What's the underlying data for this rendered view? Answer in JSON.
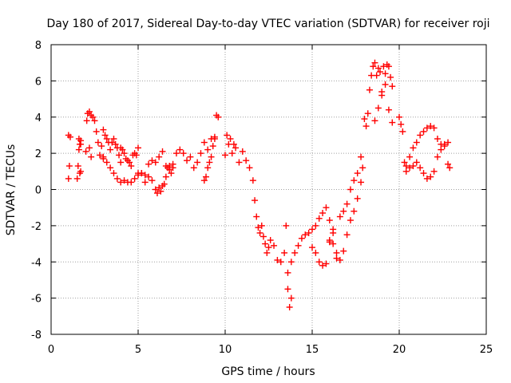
{
  "chart_data": {
    "type": "scatter",
    "title": "Day 180 of 2017, Sidereal Day-to-day VTEC variation (SDTVAR) for receiver roji",
    "xlabel": "GPS time / hours",
    "ylabel": "SDTVAR / TECUs",
    "xlim": [
      0,
      25
    ],
    "ylim": [
      -8,
      8
    ],
    "xticks": [
      0,
      5,
      10,
      15,
      20,
      25
    ],
    "yticks": [
      -8,
      -6,
      -4,
      -2,
      0,
      2,
      4,
      6,
      8
    ],
    "grid": true,
    "marker": "+",
    "color": "#ff0000",
    "series": [
      {
        "name": "SDTVAR",
        "x": [
          1.0,
          1.0,
          1.05,
          1.1,
          1.5,
          1.55,
          1.6,
          1.6,
          1.65,
          1.65,
          1.7,
          1.7,
          1.7,
          2.0,
          2.05,
          2.1,
          2.2,
          2.2,
          2.3,
          2.3,
          2.4,
          2.5,
          2.6,
          2.7,
          2.8,
          2.9,
          3.0,
          3.0,
          3.1,
          3.2,
          3.3,
          3.4,
          3.5,
          3.6,
          3.7,
          3.8,
          3.9,
          4.0,
          4.0,
          4.1,
          4.2,
          4.3,
          4.4,
          4.5,
          4.6,
          4.7,
          4.8,
          4.9,
          5.0,
          3.0,
          3.2,
          3.4,
          3.6,
          3.8,
          4.0,
          4.2,
          4.4,
          4.6,
          4.8,
          5.0,
          5.2,
          5.4,
          5.6,
          5.8,
          6.0,
          6.2,
          6.4,
          6.6,
          6.8,
          7.0,
          5.0,
          5.2,
          5.4,
          5.6,
          5.8,
          6.0,
          6.1,
          6.2,
          6.3,
          6.4,
          6.5,
          6.6,
          6.7,
          6.8,
          6.9,
          7.0,
          7.2,
          7.4,
          7.6,
          7.8,
          8.0,
          8.2,
          8.4,
          8.6,
          8.8,
          9.0,
          9.2,
          9.4,
          8.8,
          8.9,
          9.0,
          9.1,
          9.2,
          9.3,
          9.4,
          9.5,
          9.6,
          10.0,
          10.1,
          10.2,
          10.3,
          10.4,
          10.5,
          10.6,
          10.8,
          11.0,
          11.2,
          11.4,
          11.6,
          11.7,
          11.8,
          11.9,
          12.0,
          12.1,
          12.2,
          12.3,
          12.4,
          12.5,
          12.6,
          12.8,
          13.0,
          13.2,
          13.4,
          13.5,
          13.6,
          13.7,
          13.8,
          13.6,
          13.8,
          14.0,
          14.2,
          14.4,
          14.6,
          14.8,
          15.0,
          15.2,
          15.4,
          15.6,
          15.8,
          16.0,
          16.2,
          15.0,
          15.2,
          15.4,
          15.6,
          15.8,
          16.0,
          16.2,
          16.4,
          16.6,
          16.8,
          17.0,
          17.2,
          17.4,
          17.6,
          17.8,
          16.0,
          16.2,
          16.4,
          16.6,
          16.8,
          17.0,
          17.2,
          17.4,
          17.6,
          17.8,
          17.9,
          18.0,
          18.1,
          18.2,
          18.3,
          18.4,
          18.5,
          18.6,
          18.7,
          18.8,
          18.9,
          19.0,
          19.1,
          19.2,
          19.3,
          19.4,
          19.5,
          19.6,
          18.6,
          18.8,
          19.0,
          19.2,
          19.4,
          19.6,
          20.0,
          20.1,
          20.2,
          20.3,
          20.4,
          20.6,
          20.8,
          21.0,
          21.2,
          21.4,
          21.6,
          21.8,
          22.0,
          22.2,
          22.4,
          22.6,
          22.8,
          22.9,
          20.4,
          20.6,
          20.8,
          21.0,
          21.2,
          21.4,
          21.6,
          21.8,
          22.0,
          22.2,
          22.4,
          22.6,
          22.8
        ],
        "y": [
          3.0,
          0.6,
          1.3,
          2.9,
          0.6,
          1.3,
          2.8,
          2.2,
          0.9,
          2.5,
          1.0,
          2.7,
          2.5,
          2.1,
          3.8,
          4.2,
          4.3,
          2.3,
          4.1,
          1.8,
          4.0,
          3.8,
          3.2,
          2.6,
          1.9,
          2.4,
          3.3,
          1.7,
          3.0,
          2.8,
          2.6,
          2.2,
          2.6,
          2.8,
          2.5,
          2.3,
          1.9,
          1.5,
          2.3,
          2.2,
          2.0,
          1.7,
          1.6,
          1.5,
          1.3,
          1.9,
          2.0,
          1.9,
          2.3,
          1.8,
          1.5,
          1.2,
          0.9,
          0.6,
          0.4,
          0.5,
          0.4,
          0.4,
          0.6,
          0.9,
          0.9,
          0.8,
          1.4,
          1.6,
          1.5,
          1.8,
          2.1,
          1.3,
          1.3,
          1.2,
          0.8,
          0.9,
          0.4,
          0.7,
          0.5,
          0.0,
          -0.2,
          0.1,
          -0.1,
          0.2,
          0.3,
          0.7,
          1.2,
          1.1,
          0.9,
          1.4,
          2.0,
          2.2,
          2.0,
          1.6,
          1.8,
          1.2,
          1.5,
          2.0,
          2.6,
          2.2,
          2.8,
          2.9,
          0.5,
          0.7,
          1.2,
          1.5,
          1.8,
          2.4,
          2.8,
          4.1,
          4.0,
          1.9,
          3.0,
          2.5,
          2.8,
          2.0,
          2.5,
          2.3,
          1.5,
          2.1,
          1.6,
          1.2,
          0.5,
          -0.6,
          -1.5,
          -2.1,
          -2.4,
          -2.0,
          -2.6,
          -3.0,
          -3.5,
          -3.2,
          -2.8,
          -3.1,
          -3.9,
          -4.0,
          -3.5,
          -2.0,
          -5.5,
          -6.5,
          -6.0,
          -4.6,
          -4.0,
          -3.5,
          -3.1,
          -2.7,
          -2.5,
          -2.4,
          -2.2,
          -2.0,
          -1.6,
          -1.3,
          -1.0,
          -1.7,
          -2.2,
          -3.2,
          -3.5,
          -4.0,
          -4.2,
          -4.1,
          -2.9,
          -2.4,
          -3.5,
          -1.5,
          -1.2,
          -0.8,
          0.0,
          0.5,
          0.9,
          1.8,
          -2.8,
          -3.0,
          -3.8,
          -3.9,
          -3.4,
          -2.5,
          -1.7,
          -1.2,
          -0.5,
          0.4,
          1.2,
          3.9,
          3.5,
          4.2,
          5.5,
          6.3,
          6.8,
          7.0,
          6.3,
          6.7,
          6.5,
          5.4,
          6.8,
          6.4,
          6.9,
          6.8,
          6.2,
          5.7,
          3.8,
          4.5,
          5.2,
          5.8,
          4.4,
          3.7,
          4.0,
          3.6,
          3.2,
          1.5,
          1.3,
          1.8,
          2.3,
          2.6,
          3.0,
          3.2,
          3.4,
          3.5,
          3.4,
          2.8,
          2.5,
          2.4,
          2.6,
          1.2,
          1.0,
          1.2,
          1.3,
          1.5,
          1.2,
          0.9,
          0.6,
          0.7,
          1.0,
          1.8,
          2.2,
          2.5,
          1.4
        ]
      }
    ]
  }
}
